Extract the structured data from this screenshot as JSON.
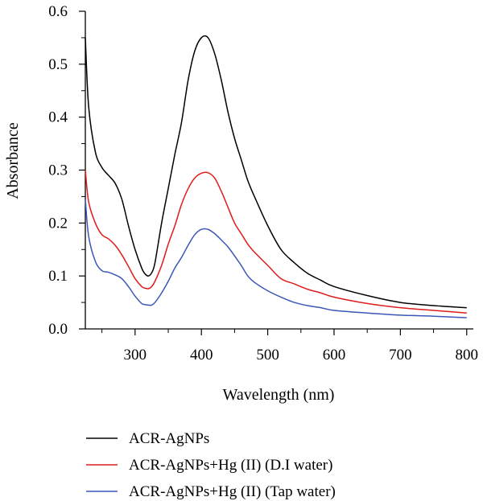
{
  "chart_data": {
    "type": "line",
    "xlabel": "Wavelength (nm)",
    "ylabel": "Absorbance",
    "xlim": [
      225,
      810
    ],
    "ylim": [
      0,
      0.6
    ],
    "xticks": [
      300,
      400,
      500,
      600,
      700,
      800
    ],
    "yticks": [
      0.0,
      0.1,
      0.2,
      0.3,
      0.4,
      0.5,
      0.6
    ],
    "xtick_labels": [
      "300",
      "400",
      "500",
      "600",
      "700",
      "800"
    ],
    "ytick_labels": [
      "0.0",
      "0.1",
      "0.2",
      "0.3",
      "0.4",
      "0.5",
      "0.6"
    ],
    "grid": false,
    "legend_position": "bottom",
    "series": [
      {
        "name": "ACR-AgNPs",
        "color": "#000000",
        "x": [
          225,
          230,
          240,
          250,
          260,
          270,
          280,
          290,
          300,
          310,
          315,
          320,
          325,
          330,
          340,
          350,
          360,
          370,
          380,
          390,
          400,
          410,
          420,
          430,
          440,
          450,
          460,
          470,
          480,
          500,
          520,
          540,
          560,
          580,
          600,
          650,
          700,
          750,
          800
        ],
        "y": [
          0.55,
          0.42,
          0.335,
          0.305,
          0.29,
          0.275,
          0.245,
          0.195,
          0.15,
          0.115,
          0.104,
          0.1,
          0.106,
          0.125,
          0.2,
          0.265,
          0.33,
          0.39,
          0.47,
          0.525,
          0.55,
          0.55,
          0.52,
          0.47,
          0.41,
          0.36,
          0.32,
          0.28,
          0.25,
          0.195,
          0.15,
          0.125,
          0.105,
          0.092,
          0.08,
          0.063,
          0.05,
          0.044,
          0.04
        ]
      },
      {
        "name": "ACR-AgNPs+Hg (II) (D.I water)",
        "color": "#e01b1b",
        "x": [
          225,
          230,
          240,
          250,
          260,
          270,
          280,
          290,
          300,
          310,
          315,
          320,
          325,
          330,
          340,
          350,
          360,
          370,
          380,
          390,
          400,
          410,
          420,
          430,
          440,
          450,
          460,
          470,
          480,
          500,
          520,
          540,
          560,
          580,
          600,
          650,
          700,
          750,
          800
        ],
        "y": [
          0.3,
          0.24,
          0.2,
          0.178,
          0.17,
          0.158,
          0.14,
          0.118,
          0.095,
          0.08,
          0.077,
          0.076,
          0.08,
          0.09,
          0.12,
          0.16,
          0.195,
          0.235,
          0.265,
          0.285,
          0.294,
          0.295,
          0.285,
          0.26,
          0.23,
          0.2,
          0.18,
          0.16,
          0.145,
          0.12,
          0.095,
          0.085,
          0.075,
          0.068,
          0.06,
          0.048,
          0.04,
          0.035,
          0.03
        ]
      },
      {
        "name": "ACR-AgNPs+Hg (II) (Tap water)",
        "color": "#3a57b8",
        "x": [
          225,
          230,
          240,
          250,
          260,
          270,
          280,
          290,
          300,
          310,
          315,
          320,
          325,
          330,
          340,
          350,
          360,
          370,
          380,
          390,
          400,
          410,
          420,
          430,
          440,
          450,
          460,
          470,
          480,
          500,
          520,
          540,
          560,
          580,
          600,
          650,
          700,
          750,
          800
        ],
        "y": [
          0.245,
          0.175,
          0.128,
          0.11,
          0.107,
          0.102,
          0.095,
          0.08,
          0.062,
          0.048,
          0.046,
          0.045,
          0.045,
          0.05,
          0.068,
          0.09,
          0.115,
          0.135,
          0.158,
          0.178,
          0.188,
          0.188,
          0.18,
          0.168,
          0.155,
          0.138,
          0.12,
          0.1,
          0.088,
          0.072,
          0.06,
          0.05,
          0.044,
          0.04,
          0.035,
          0.03,
          0.026,
          0.024,
          0.021
        ]
      }
    ]
  }
}
